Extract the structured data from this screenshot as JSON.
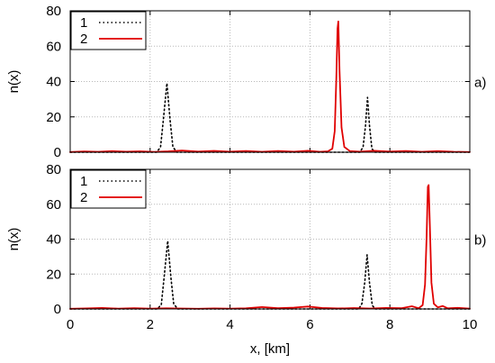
{
  "chart_data": [
    {
      "type": "line",
      "title": "",
      "xlabel": "",
      "ylabel": "n(x)",
      "xlim": [
        0,
        10
      ],
      "ylim": [
        0,
        80
      ],
      "x_ticks": [],
      "y_ticks": [
        "0",
        "20",
        "40",
        "60",
        "80"
      ],
      "panel_label": "a)",
      "grid": true,
      "legend_position": "top-left",
      "series": [
        {
          "name": "1",
          "style": "dotted",
          "color": "#000000",
          "points": [
            [
              0,
              0
            ],
            [
              2.16,
              0
            ],
            [
              2.26,
              2.8
            ],
            [
              2.33,
              18
            ],
            [
              2.42,
              39
            ],
            [
              2.5,
              18
            ],
            [
              2.57,
              3
            ],
            [
              2.67,
              0
            ],
            [
              7.25,
              0
            ],
            [
              7.33,
              3
            ],
            [
              7.39,
              15
            ],
            [
              7.44,
              31
            ],
            [
              7.49,
              15
            ],
            [
              7.55,
              2
            ],
            [
              7.63,
              0
            ],
            [
              10,
              0
            ]
          ]
        },
        {
          "name": "2",
          "color": "#e00000",
          "points": [
            [
              0,
              0.1
            ],
            [
              0.35,
              0.45
            ],
            [
              0.7,
              0.22
            ],
            [
              1.05,
              0.62
            ],
            [
              1.4,
              0.3
            ],
            [
              1.75,
              0.52
            ],
            [
              2.1,
              0.21
            ],
            [
              2.45,
              0.48
            ],
            [
              2.8,
              0.95
            ],
            [
              3.2,
              0.34
            ],
            [
              3.6,
              0.78
            ],
            [
              4.0,
              0.29
            ],
            [
              4.4,
              0.66
            ],
            [
              4.8,
              0.24
            ],
            [
              5.2,
              0.7
            ],
            [
              5.6,
              0.31
            ],
            [
              5.95,
              0.84
            ],
            [
              6.25,
              0.26
            ],
            [
              6.45,
              0.5
            ],
            [
              6.56,
              2
            ],
            [
              6.62,
              12
            ],
            [
              6.66,
              42
            ],
            [
              6.69,
              70
            ],
            [
              6.71,
              74
            ],
            [
              6.74,
              46
            ],
            [
              6.79,
              14
            ],
            [
              6.86,
              3
            ],
            [
              7.0,
              0.6
            ],
            [
              7.25,
              0.28
            ],
            [
              7.6,
              0.82
            ],
            [
              8.0,
              0.37
            ],
            [
              8.4,
              0.68
            ],
            [
              8.8,
              0.26
            ],
            [
              9.2,
              0.61
            ],
            [
              9.6,
              0.24
            ],
            [
              10,
              0.12
            ]
          ]
        }
      ]
    },
    {
      "type": "line",
      "title": "",
      "xlabel": "x, [km]",
      "ylabel": "n(x)",
      "xlim": [
        0,
        10
      ],
      "ylim": [
        0,
        80
      ],
      "x_ticks": [
        "0",
        "2",
        "4",
        "6",
        "8",
        "10"
      ],
      "y_ticks": [
        "0",
        "20",
        "40",
        "60",
        "80"
      ],
      "panel_label": "b)",
      "grid": true,
      "legend_position": "top-left",
      "series": [
        {
          "name": "1",
          "style": "dotted",
          "color": "#000000",
          "points": [
            [
              0,
              0
            ],
            [
              2.18,
              0
            ],
            [
              2.28,
              2.5
            ],
            [
              2.35,
              18
            ],
            [
              2.44,
              39
            ],
            [
              2.52,
              18
            ],
            [
              2.59,
              3
            ],
            [
              2.69,
              0
            ],
            [
              7.22,
              0
            ],
            [
              7.3,
              3
            ],
            [
              7.37,
              15
            ],
            [
              7.43,
              31
            ],
            [
              7.49,
              15
            ],
            [
              7.56,
              2
            ],
            [
              7.64,
              0
            ],
            [
              10,
              0
            ]
          ]
        },
        {
          "name": "2",
          "color": "#e00000",
          "points": [
            [
              0,
              0.1
            ],
            [
              0.4,
              0.32
            ],
            [
              0.8,
              0.55
            ],
            [
              1.2,
              0.21
            ],
            [
              1.6,
              0.46
            ],
            [
              2.0,
              0.18
            ],
            [
              2.4,
              0.36
            ],
            [
              2.8,
              0.27
            ],
            [
              3.2,
              0.12
            ],
            [
              3.6,
              0.28
            ],
            [
              4.0,
              0.18
            ],
            [
              4.4,
              0.4
            ],
            [
              4.8,
              1.1
            ],
            [
              5.2,
              0.45
            ],
            [
              5.6,
              0.78
            ],
            [
              5.95,
              1.38
            ],
            [
              6.3,
              0.6
            ],
            [
              6.7,
              0.28
            ],
            [
              7.1,
              0.48
            ],
            [
              7.5,
              0.22
            ],
            [
              7.9,
              0.57
            ],
            [
              8.3,
              0.46
            ],
            [
              8.55,
              1.55
            ],
            [
              8.72,
              0.42
            ],
            [
              8.82,
              2.2
            ],
            [
              8.88,
              14
            ],
            [
              8.92,
              42
            ],
            [
              8.95,
              70
            ],
            [
              8.97,
              71
            ],
            [
              9.0,
              48
            ],
            [
              9.04,
              15
            ],
            [
              9.1,
              3
            ],
            [
              9.2,
              0.9
            ],
            [
              9.32,
              1.7
            ],
            [
              9.45,
              0.35
            ],
            [
              9.7,
              0.62
            ],
            [
              10,
              0.2
            ]
          ]
        }
      ]
    }
  ]
}
